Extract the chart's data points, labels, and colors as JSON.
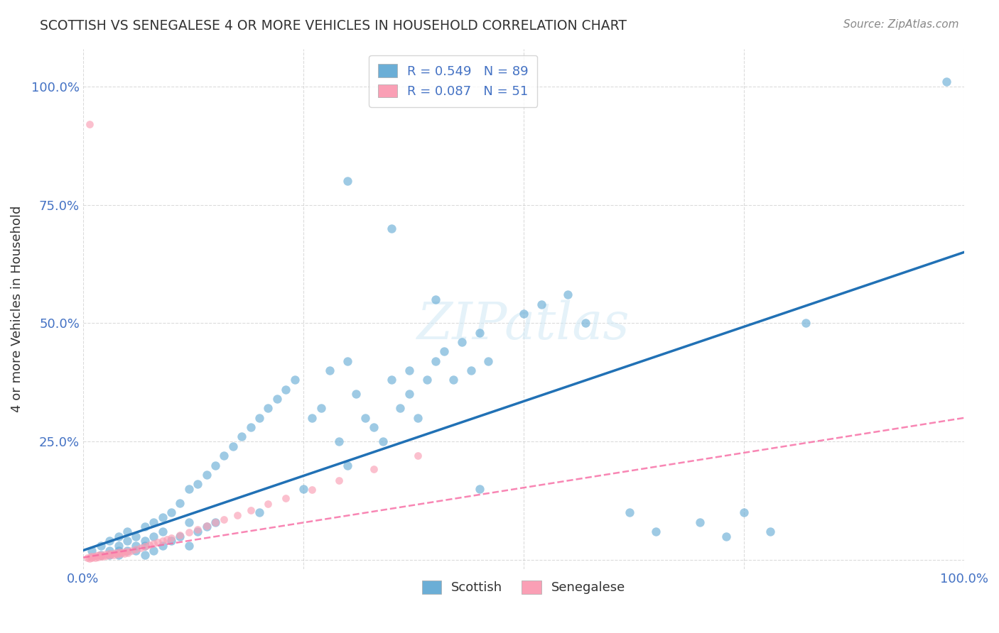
{
  "title": "SCOTTISH VS SENEGALESE 4 OR MORE VEHICLES IN HOUSEHOLD CORRELATION CHART",
  "source": "Source: ZipAtlas.com",
  "ylabel": "4 or more Vehicles in Household",
  "xlim": [
    0,
    1
  ],
  "ylim_low": -0.02,
  "ylim_high": 1.08,
  "xticks": [
    0,
    0.25,
    0.5,
    0.75,
    1.0
  ],
  "yticks": [
    0,
    0.25,
    0.5,
    0.75,
    1.0
  ],
  "xticklabels": [
    "0.0%",
    "",
    "",
    "",
    "100.0%"
  ],
  "yticklabels": [
    "",
    "25.0%",
    "50.0%",
    "75.0%",
    "100.0%"
  ],
  "watermark": "ZIPatlas",
  "scottish_R": 0.549,
  "scottish_N": 89,
  "senegalese_R": 0.087,
  "senegalese_N": 51,
  "scottish_color": "#6baed6",
  "senegalese_color": "#fa9fb5",
  "scottish_line_color": "#2171b5",
  "senegalese_line_color": "#f768a1",
  "scottish_x": [
    0.01,
    0.02,
    0.02,
    0.03,
    0.03,
    0.03,
    0.04,
    0.04,
    0.04,
    0.04,
    0.05,
    0.05,
    0.05,
    0.06,
    0.06,
    0.06,
    0.07,
    0.07,
    0.07,
    0.07,
    0.08,
    0.08,
    0.08,
    0.09,
    0.09,
    0.09,
    0.1,
    0.1,
    0.11,
    0.11,
    0.12,
    0.12,
    0.12,
    0.13,
    0.13,
    0.14,
    0.14,
    0.15,
    0.15,
    0.16,
    0.17,
    0.18,
    0.19,
    0.2,
    0.2,
    0.21,
    0.22,
    0.23,
    0.24,
    0.25,
    0.26,
    0.27,
    0.28,
    0.29,
    0.3,
    0.3,
    0.31,
    0.32,
    0.33,
    0.34,
    0.35,
    0.36,
    0.37,
    0.37,
    0.38,
    0.39,
    0.4,
    0.41,
    0.42,
    0.43,
    0.44,
    0.45,
    0.46,
    0.5,
    0.52,
    0.55,
    0.57,
    0.62,
    0.65,
    0.7,
    0.73,
    0.75,
    0.78,
    0.82,
    0.3,
    0.35,
    0.4,
    0.45,
    0.98
  ],
  "scottish_y": [
    0.02,
    0.01,
    0.03,
    0.02,
    0.04,
    0.01,
    0.03,
    0.02,
    0.05,
    0.01,
    0.04,
    0.02,
    0.06,
    0.03,
    0.05,
    0.02,
    0.07,
    0.04,
    0.03,
    0.01,
    0.08,
    0.05,
    0.02,
    0.09,
    0.06,
    0.03,
    0.1,
    0.04,
    0.12,
    0.05,
    0.15,
    0.08,
    0.03,
    0.16,
    0.06,
    0.18,
    0.07,
    0.2,
    0.08,
    0.22,
    0.24,
    0.26,
    0.28,
    0.1,
    0.3,
    0.32,
    0.34,
    0.36,
    0.38,
    0.15,
    0.3,
    0.32,
    0.4,
    0.25,
    0.42,
    0.2,
    0.35,
    0.3,
    0.28,
    0.25,
    0.38,
    0.32,
    0.4,
    0.35,
    0.3,
    0.38,
    0.42,
    0.44,
    0.38,
    0.46,
    0.4,
    0.48,
    0.42,
    0.52,
    0.54,
    0.56,
    0.5,
    0.1,
    0.06,
    0.08,
    0.05,
    0.1,
    0.06,
    0.5,
    0.8,
    0.7,
    0.55,
    0.15,
    1.01
  ],
  "senegalese_x": [
    0.005,
    0.007,
    0.009,
    0.01,
    0.012,
    0.014,
    0.015,
    0.017,
    0.018,
    0.02,
    0.021,
    0.023,
    0.025,
    0.027,
    0.029,
    0.031,
    0.033,
    0.035,
    0.037,
    0.039,
    0.041,
    0.043,
    0.045,
    0.047,
    0.049,
    0.051,
    0.055,
    0.06,
    0.065,
    0.07,
    0.075,
    0.08,
    0.085,
    0.09,
    0.095,
    0.1,
    0.11,
    0.12,
    0.13,
    0.14,
    0.15,
    0.16,
    0.175,
    0.19,
    0.21,
    0.23,
    0.26,
    0.29,
    0.33,
    0.38,
    0.007
  ],
  "senegalese_y": [
    0.005,
    0.003,
    0.007,
    0.004,
    0.008,
    0.005,
    0.009,
    0.006,
    0.01,
    0.007,
    0.011,
    0.008,
    0.012,
    0.009,
    0.013,
    0.01,
    0.014,
    0.011,
    0.015,
    0.012,
    0.016,
    0.013,
    0.017,
    0.014,
    0.018,
    0.015,
    0.019,
    0.022,
    0.025,
    0.028,
    0.031,
    0.034,
    0.037,
    0.04,
    0.043,
    0.046,
    0.052,
    0.058,
    0.065,
    0.072,
    0.079,
    0.086,
    0.095,
    0.105,
    0.118,
    0.13,
    0.148,
    0.168,
    0.192,
    0.22,
    0.92
  ],
  "scottish_line_x": [
    0.0,
    1.0
  ],
  "scottish_line_y": [
    0.02,
    0.65
  ],
  "senegalese_line_x": [
    0.0,
    1.0
  ],
  "senegalese_line_y": [
    0.005,
    0.3
  ]
}
